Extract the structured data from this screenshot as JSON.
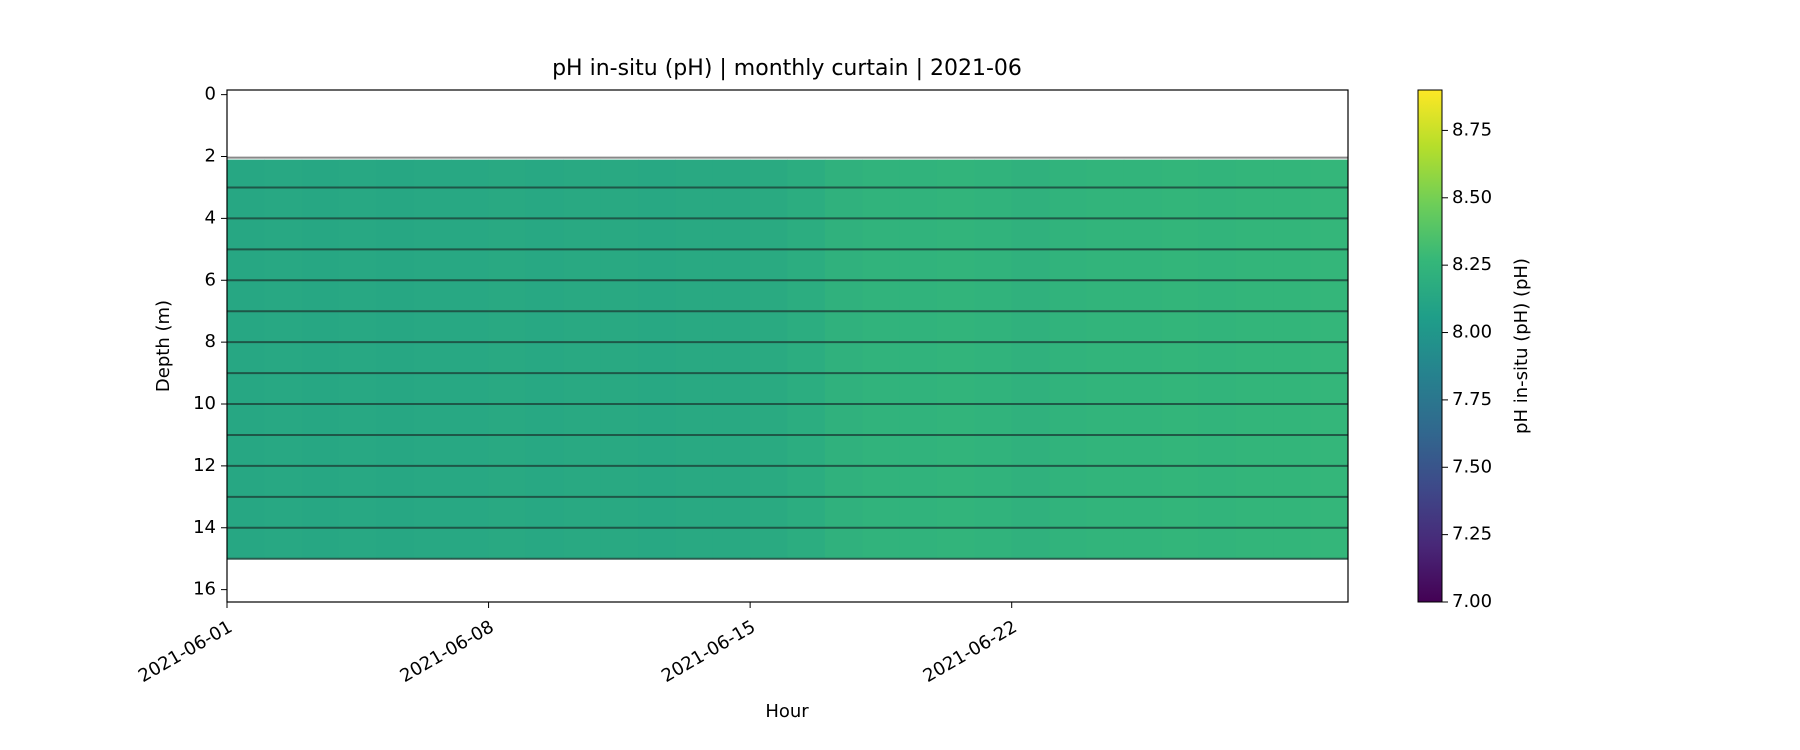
{
  "chart_data": {
    "type": "curtain",
    "title": "pH in-situ (pH) | monthly curtain | 2021-06",
    "x_label": "Hour",
    "y_label": "Depth (m)",
    "colorbar_label": "pH in-situ (pH) (pH)",
    "colormap": "viridis",
    "x": [
      "2021-06-01",
      "2021-06-02",
      "2021-06-03",
      "2021-06-04",
      "2021-06-05",
      "2021-06-06",
      "2021-06-07",
      "2021-06-08",
      "2021-06-09",
      "2021-06-10",
      "2021-06-11",
      "2021-06-12",
      "2021-06-13",
      "2021-06-14",
      "2021-06-15",
      "2021-06-16",
      "2021-06-17",
      "2021-06-18",
      "2021-06-19",
      "2021-06-20",
      "2021-06-21",
      "2021-06-22",
      "2021-06-23",
      "2021-06-24",
      "2021-06-25",
      "2021-06-26",
      "2021-06-27",
      "2021-06-28",
      "2021-06-29",
      "2021-06-30"
    ],
    "values": [
      8.13,
      8.14,
      8.13,
      8.14,
      8.13,
      8.14,
      8.14,
      8.15,
      8.14,
      8.15,
      8.15,
      8.14,
      8.15,
      8.15,
      8.16,
      8.18,
      8.22,
      8.23,
      8.23,
      8.24,
      8.23,
      8.22,
      8.23,
      8.24,
      8.24,
      8.25,
      8.24,
      8.25,
      8.25,
      8.26
    ],
    "depth_range": [
      2.1,
      15
    ],
    "xlim": [
      "2021-06-01",
      "2021-07-01"
    ],
    "xticks": [
      "2021-06-01",
      "2021-06-08",
      "2021-06-15",
      "2021-06-22"
    ],
    "ylim": [
      16.4,
      -0.15
    ],
    "yticks": [
      0,
      2,
      4,
      6,
      8,
      10,
      12,
      14,
      16
    ],
    "clim": [
      7,
      8.9
    ],
    "cticks": [
      {
        "value": 7,
        "label": "7.00"
      },
      7.25,
      {
        "value": 7.5,
        "label": "7.50"
      },
      7.75,
      {
        "value": 8,
        "label": "8.00"
      },
      8.25,
      {
        "value": 8.5,
        "label": "8.50"
      },
      8.75
    ]
  }
}
